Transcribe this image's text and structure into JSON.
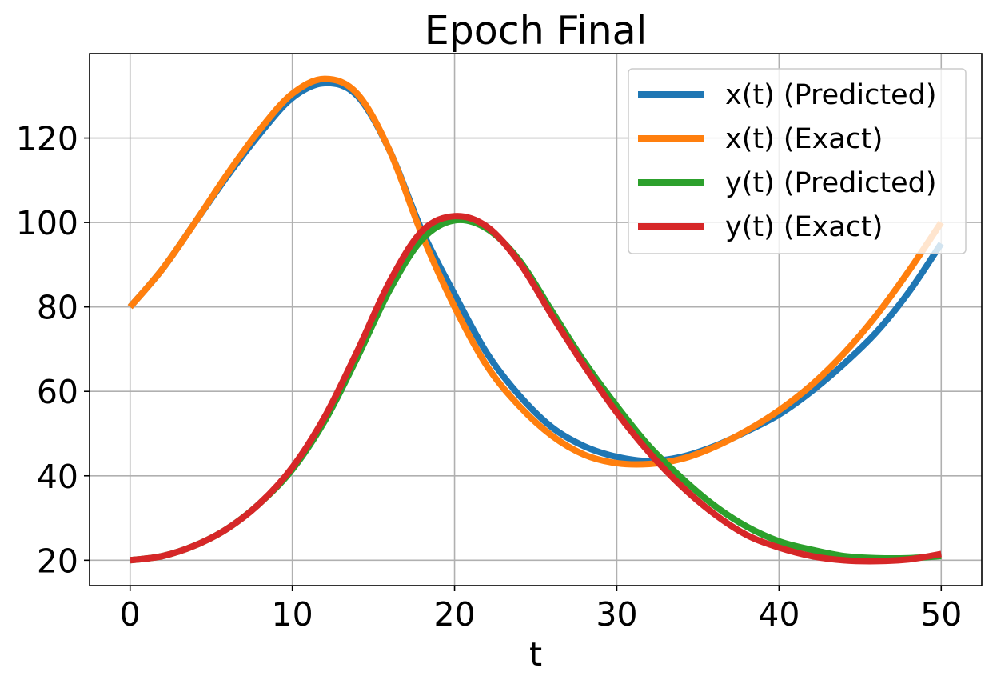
{
  "chart_data": {
    "type": "line",
    "title": "Epoch Final",
    "xlabel": "t",
    "ylabel": "",
    "xlim": [
      -2.5,
      52.5
    ],
    "ylim": [
      14,
      140
    ],
    "xticks": [
      "0",
      "10",
      "20",
      "30",
      "40",
      "50"
    ],
    "yticks": [
      "20",
      "40",
      "60",
      "80",
      "100",
      "120"
    ],
    "grid": true,
    "legend_position": "top-right",
    "series": [
      {
        "name": "x(t) (Predicted)",
        "color": "#1f77b4",
        "x": [
          0,
          2,
          4,
          6,
          8,
          10,
          12,
          14,
          16,
          18,
          20,
          22,
          24,
          26,
          28,
          30,
          32,
          34,
          36,
          38,
          40,
          42,
          44,
          46,
          48,
          50
        ],
        "y": [
          80,
          89,
          100,
          111,
          121,
          129.5,
          133,
          130,
          117,
          98,
          83,
          69,
          59,
          51.5,
          47,
          44.5,
          43.5,
          44.5,
          47,
          50.5,
          54.5,
          60,
          66.5,
          74,
          83.5,
          95
        ]
      },
      {
        "name": "x(t) (Exact)",
        "color": "#ff7f0e",
        "x": [
          0,
          2,
          4,
          6,
          8,
          10,
          12,
          14,
          16,
          18,
          20,
          22,
          24,
          26,
          28,
          30,
          32,
          34,
          36,
          38,
          40,
          42,
          44,
          46,
          48,
          50
        ],
        "y": [
          80,
          89,
          100,
          111.5,
          122,
          130.5,
          134,
          130.5,
          117,
          97,
          80,
          66,
          56.5,
          49.5,
          45,
          43,
          42.8,
          44,
          46.8,
          50.7,
          55.5,
          61.5,
          69,
          78,
          88.5,
          100
        ]
      },
      {
        "name": "y(t) (Predicted)",
        "color": "#2ca02c",
        "x": [
          0,
          2,
          4,
          6,
          8,
          10,
          12,
          14,
          16,
          18,
          20,
          22,
          24,
          26,
          28,
          30,
          32,
          34,
          36,
          38,
          40,
          42,
          44,
          46,
          48,
          50
        ],
        "y": [
          20,
          21,
          23.5,
          27.5,
          33.5,
          41.5,
          53,
          68,
          84,
          96,
          100.5,
          98.5,
          91,
          79,
          67,
          56.5,
          47,
          39.5,
          33,
          28,
          24.5,
          22.5,
          21,
          20.5,
          20.5,
          21
        ]
      },
      {
        "name": "y(t) (Exact)",
        "color": "#d62728",
        "x": [
          0,
          2,
          4,
          6,
          8,
          10,
          12,
          14,
          16,
          18,
          20,
          22,
          24,
          26,
          28,
          30,
          32,
          34,
          36,
          38,
          40,
          42,
          44,
          46,
          48,
          50
        ],
        "y": [
          20,
          21,
          23.5,
          27.5,
          33.5,
          42,
          54,
          69.5,
          86,
          98,
          101.5,
          99,
          90.5,
          78,
          66,
          55,
          45.5,
          37.5,
          31,
          26,
          23,
          21,
          20,
          19.8,
          20.2,
          21.5
        ]
      }
    ]
  }
}
